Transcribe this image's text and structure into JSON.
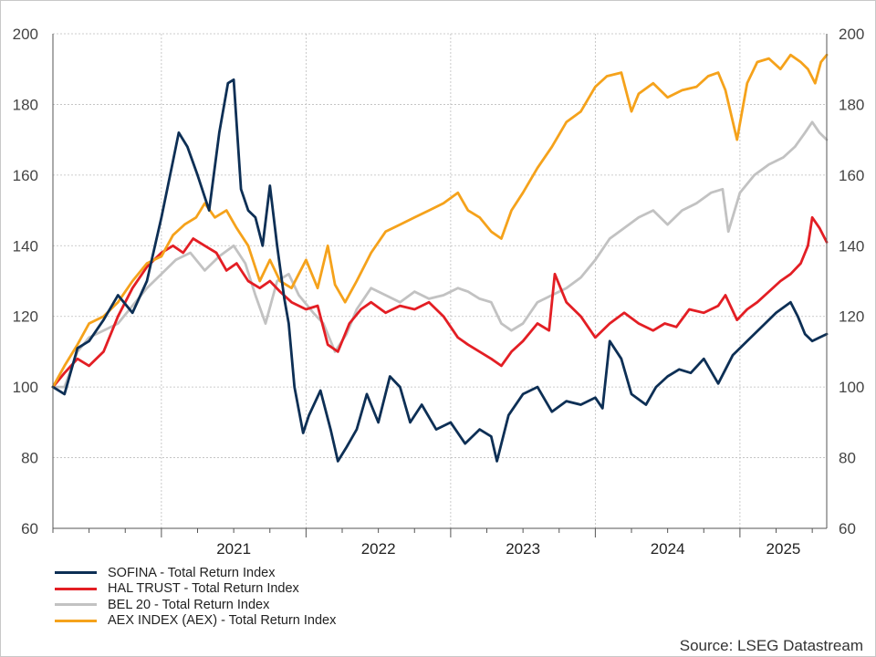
{
  "chart_data": {
    "type": "line",
    "title": "",
    "xlabel": "",
    "ylabel": "",
    "ylim": [
      60,
      200
    ],
    "yticks": [
      60,
      80,
      100,
      120,
      140,
      160,
      180,
      200
    ],
    "xlim": [
      2020.25,
      2025.6
    ],
    "x_year_labels": [
      "2021",
      "2022",
      "2023",
      "2024",
      "2025"
    ],
    "grid": true,
    "legend_position": "bottom-left",
    "series": [
      {
        "name": "SOFINA - Total Return Index",
        "color": "#0d2f55",
        "x": [
          2020.25,
          2020.33,
          2020.42,
          2020.5,
          2020.6,
          2020.7,
          2020.8,
          2020.9,
          2021.0,
          2021.08,
          2021.12,
          2021.18,
          2021.25,
          2021.33,
          2021.4,
          2021.46,
          2021.5,
          2021.55,
          2021.6,
          2021.65,
          2021.7,
          2021.75,
          2021.8,
          2021.85,
          2021.88,
          2021.92,
          2021.98,
          2022.02,
          2022.1,
          2022.17,
          2022.22,
          2022.28,
          2022.35,
          2022.42,
          2022.5,
          2022.58,
          2022.65,
          2022.72,
          2022.8,
          2022.9,
          2023.0,
          2023.1,
          2023.2,
          2023.28,
          2023.32,
          2023.4,
          2023.5,
          2023.6,
          2023.7,
          2023.8,
          2023.9,
          2024.0,
          2024.05,
          2024.1,
          2024.18,
          2024.25,
          2024.35,
          2024.42,
          2024.5,
          2024.58,
          2024.66,
          2024.75,
          2024.85,
          2024.95,
          2025.05,
          2025.15,
          2025.25,
          2025.35,
          2025.4,
          2025.45,
          2025.5,
          2025.55,
          2025.6
        ],
        "values": [
          100,
          98,
          111,
          113,
          119,
          126,
          121,
          130,
          148,
          164,
          172,
          168,
          160,
          150,
          172,
          186,
          187,
          156,
          150,
          148,
          140,
          157,
          140,
          125,
          118,
          100,
          87,
          92,
          99,
          88,
          79,
          83,
          88,
          98,
          90,
          103,
          100,
          90,
          95,
          88,
          90,
          84,
          88,
          86,
          79,
          92,
          98,
          100,
          93,
          96,
          95,
          97,
          94,
          113,
          108,
          98,
          95,
          100,
          103,
          105,
          104,
          108,
          101,
          109,
          113,
          117,
          121,
          124,
          120,
          115,
          113,
          114,
          115
        ]
      },
      {
        "name": "HAL TRUST - Total Return Index",
        "color": "#e31e24",
        "x": [
          2020.25,
          2020.33,
          2020.42,
          2020.5,
          2020.6,
          2020.7,
          2020.8,
          2020.9,
          2021.0,
          2021.08,
          2021.15,
          2021.22,
          2021.3,
          2021.38,
          2021.45,
          2021.52,
          2021.6,
          2021.68,
          2021.75,
          2021.82,
          2021.9,
          2022.0,
          2022.08,
          2022.15,
          2022.22,
          2022.3,
          2022.38,
          2022.45,
          2022.55,
          2022.65,
          2022.75,
          2022.85,
          2022.95,
          2023.05,
          2023.12,
          2023.2,
          2023.28,
          2023.35,
          2023.42,
          2023.5,
          2023.6,
          2023.68,
          2023.72,
          2023.8,
          2023.9,
          2024.0,
          2024.1,
          2024.2,
          2024.3,
          2024.4,
          2024.48,
          2024.56,
          2024.65,
          2024.75,
          2024.85,
          2024.9,
          2024.98,
          2025.05,
          2025.12,
          2025.2,
          2025.28,
          2025.35,
          2025.42,
          2025.47,
          2025.5,
          2025.55,
          2025.6
        ],
        "values": [
          100,
          104,
          108,
          106,
          110,
          120,
          128,
          134,
          138,
          140,
          138,
          142,
          140,
          138,
          133,
          135,
          130,
          128,
          130,
          127,
          124,
          122,
          123,
          112,
          110,
          118,
          122,
          124,
          121,
          123,
          122,
          124,
          120,
          114,
          112,
          110,
          108,
          106,
          110,
          113,
          118,
          116,
          132,
          124,
          120,
          114,
          118,
          121,
          118,
          116,
          118,
          117,
          122,
          121,
          123,
          126,
          119,
          122,
          124,
          127,
          130,
          132,
          135,
          140,
          148,
          145,
          141
        ]
      },
      {
        "name": "BEL 20 - Total Return Index",
        "color": "#c2c2c2",
        "x": [
          2020.25,
          2020.33,
          2020.42,
          2020.5,
          2020.6,
          2020.7,
          2020.8,
          2020.9,
          2021.0,
          2021.1,
          2021.2,
          2021.3,
          2021.4,
          2021.5,
          2021.58,
          2021.65,
          2021.72,
          2021.8,
          2021.88,
          2021.95,
          2022.05,
          2022.12,
          2022.2,
          2022.28,
          2022.35,
          2022.45,
          2022.55,
          2022.65,
          2022.75,
          2022.85,
          2022.95,
          2023.05,
          2023.12,
          2023.2,
          2023.28,
          2023.35,
          2023.42,
          2023.5,
          2023.6,
          2023.7,
          2023.8,
          2023.9,
          2024.0,
          2024.1,
          2024.2,
          2024.3,
          2024.4,
          2024.5,
          2024.6,
          2024.7,
          2024.8,
          2024.88,
          2024.92,
          2025.0,
          2025.1,
          2025.2,
          2025.3,
          2025.38,
          2025.45,
          2025.5,
          2025.55,
          2025.6
        ],
        "values": [
          100,
          100,
          110,
          114,
          116,
          118,
          123,
          128,
          132,
          136,
          138,
          133,
          137,
          140,
          135,
          126,
          118,
          130,
          132,
          126,
          121,
          118,
          110,
          115,
          122,
          128,
          126,
          124,
          127,
          125,
          126,
          128,
          127,
          125,
          124,
          118,
          116,
          118,
          124,
          126,
          128,
          131,
          136,
          142,
          145,
          148,
          150,
          146,
          150,
          152,
          155,
          156,
          144,
          155,
          160,
          163,
          165,
          168,
          172,
          175,
          172,
          170
        ]
      },
      {
        "name": "AEX INDEX (AEX) - Total Return Index",
        "color": "#f5a21b",
        "x": [
          2020.25,
          2020.33,
          2020.42,
          2020.5,
          2020.6,
          2020.7,
          2020.8,
          2020.9,
          2021.0,
          2021.08,
          2021.16,
          2021.24,
          2021.3,
          2021.37,
          2021.45,
          2021.52,
          2021.6,
          2021.68,
          2021.75,
          2021.82,
          2021.9,
          2022.0,
          2022.08,
          2022.15,
          2022.2,
          2022.27,
          2022.35,
          2022.45,
          2022.55,
          2022.65,
          2022.75,
          2022.85,
          2022.95,
          2023.05,
          2023.12,
          2023.2,
          2023.28,
          2023.35,
          2023.42,
          2023.5,
          2023.6,
          2023.7,
          2023.8,
          2023.9,
          2024.0,
          2024.08,
          2024.18,
          2024.25,
          2024.3,
          2024.4,
          2024.5,
          2024.6,
          2024.7,
          2024.78,
          2024.85,
          2024.9,
          2024.98,
          2025.05,
          2025.12,
          2025.2,
          2025.28,
          2025.35,
          2025.42,
          2025.47,
          2025.52,
          2025.56,
          2025.6
        ],
        "values": [
          100,
          106,
          112,
          118,
          120,
          124,
          130,
          135,
          137,
          143,
          146,
          148,
          152,
          148,
          150,
          145,
          140,
          130,
          136,
          130,
          128,
          136,
          128,
          140,
          129,
          124,
          130,
          138,
          144,
          146,
          148,
          150,
          152,
          155,
          150,
          148,
          144,
          142,
          150,
          155,
          162,
          168,
          175,
          178,
          185,
          188,
          189,
          178,
          183,
          186,
          182,
          184,
          185,
          188,
          189,
          184,
          170,
          186,
          192,
          193,
          190,
          194,
          192,
          190,
          186,
          192,
          194
        ]
      }
    ],
    "source_note": "Source: LSEG Datastream"
  }
}
